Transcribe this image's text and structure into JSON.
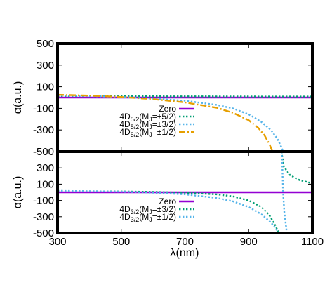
{
  "chart_data": [
    {
      "type": "line",
      "panel": "top",
      "ylabel": "α(a.u.)",
      "xlim": [
        300,
        1100
      ],
      "ylim": [
        -500,
        500
      ],
      "yticks": [
        500,
        300,
        100,
        -100,
        -300,
        -500
      ],
      "yticklabels": [
        "500",
        "300",
        "100",
        "-100",
        "-300",
        "-500"
      ],
      "legend_placement": "center-left",
      "series": [
        {
          "name": "Zero",
          "label_main": "Zero",
          "label_sub": "",
          "label_tail": "",
          "color": "#9400d3",
          "dash": "solid",
          "points": [
            [
              300,
              0
            ],
            [
              1100,
              0
            ]
          ]
        },
        {
          "name": "4D5/2(MJ=±5/2)",
          "label_main": "4D",
          "label_sub": "5/2",
          "label_tail": "(M",
          "label_sub2": "J",
          "label_end": "=±5/2)",
          "color": "#009e73",
          "dash": "dotted",
          "points": [
            [
              300,
              14
            ],
            [
              500,
              12
            ],
            [
              700,
              11
            ],
            [
              900,
              10
            ],
            [
              1100,
              9
            ]
          ]
        },
        {
          "name": "4D5/2(MJ=±3/2)",
          "label_main": "4D",
          "label_sub": "5/2",
          "label_tail": "(M",
          "label_sub2": "J",
          "label_end": "=±3/2)",
          "color": "#56b4e9",
          "dash": "dotted",
          "points": [
            [
              300,
              20
            ],
            [
              400,
              14
            ],
            [
              500,
              5
            ],
            [
              600,
              -10
            ],
            [
              700,
              -30
            ],
            [
              800,
              -68
            ],
            [
              850,
              -100
            ],
            [
              900,
              -155
            ],
            [
              940,
              -225
            ],
            [
              970,
              -300
            ],
            [
              990,
              -380
            ],
            [
              1003,
              -460
            ],
            [
              1008,
              -500
            ]
          ]
        },
        {
          "name": "4D5/2(MJ=±1/2)",
          "label_main": "4D",
          "label_sub": "5/2",
          "label_tail": "(M",
          "label_sub2": "J",
          "label_end": "=±1/2)",
          "color": "#e69f00",
          "dash": "dashdot",
          "points": [
            [
              300,
              25
            ],
            [
              400,
              18
            ],
            [
              500,
              5
            ],
            [
              600,
              -15
            ],
            [
              700,
              -45
            ],
            [
              800,
              -95
            ],
            [
              850,
              -140
            ],
            [
              900,
              -210
            ],
            [
              930,
              -280
            ],
            [
              950,
              -350
            ],
            [
              965,
              -430
            ],
            [
              975,
              -500
            ]
          ]
        }
      ]
    },
    {
      "type": "line",
      "panel": "bottom",
      "xlabel": "λ(nm)",
      "ylabel": "α(a.u.)",
      "xlim": [
        300,
        1100
      ],
      "ylim": [
        -500,
        500
      ],
      "xticks": [
        300,
        500,
        700,
        900,
        1100
      ],
      "xticklabels": [
        "300",
        "500",
        "700",
        "900",
        "1100"
      ],
      "yticks": [
        300,
        100,
        -100,
        -300,
        -500
      ],
      "yticklabels": [
        "300",
        "100",
        "-100",
        "-300",
        "-500"
      ],
      "legend_placement": "center-left",
      "series": [
        {
          "name": "Zero",
          "label_main": "Zero",
          "label_sub": "",
          "label_tail": "",
          "color": "#9400d3",
          "dash": "solid",
          "points": [
            [
              300,
              0
            ],
            [
              1100,
              0
            ]
          ]
        },
        {
          "name": "4D3/2(MJ=±3/2)",
          "label_main": "4D",
          "label_sub": "3/2",
          "label_tail": "(M",
          "label_sub2": "J",
          "label_end": "=±3/2)",
          "color": "#009e73",
          "dash": "dotted",
          "points": [
            [
              300,
              15
            ],
            [
              500,
              10
            ],
            [
              600,
              5
            ],
            [
              700,
              -5
            ],
            [
              800,
              -25
            ],
            [
              850,
              -50
            ],
            [
              900,
              -100
            ],
            [
              940,
              -180
            ],
            [
              965,
              -280
            ],
            [
              980,
              -380
            ],
            [
              990,
              -460
            ],
            [
              995,
              -500
            ]
          ],
          "points_branch": [
            [
              1003,
              500
            ],
            [
              1010,
              320
            ],
            [
              1030,
              210
            ],
            [
              1060,
              150
            ],
            [
              1100,
              110
            ]
          ]
        },
        {
          "name": "4D3/2(MJ=±1/2)",
          "label_main": "4D",
          "label_sub": "3/2",
          "label_tail": "(M",
          "label_sub2": "J",
          "label_end": "=±1/2)",
          "color": "#56b4e9",
          "dash": "dotted",
          "points": [
            [
              300,
              18
            ],
            [
              500,
              8
            ],
            [
              600,
              -5
            ],
            [
              700,
              -25
            ],
            [
              800,
              -70
            ],
            [
              850,
              -110
            ],
            [
              900,
              -180
            ],
            [
              940,
              -270
            ],
            [
              970,
              -370
            ],
            [
              988,
              -460
            ],
            [
              995,
              -500
            ]
          ],
          "points_branch": [
            [
              1004,
              500
            ],
            [
              1006,
              300
            ],
            [
              1008,
              0
            ],
            [
              1012,
              -250
            ],
            [
              1020,
              -500
            ]
          ]
        }
      ]
    }
  ]
}
